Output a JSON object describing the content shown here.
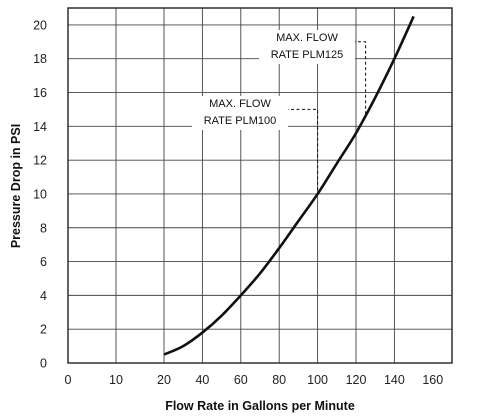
{
  "chart_data": {
    "type": "line",
    "title": "",
    "xlabel": "Flow Rate in Gallons per Minute",
    "ylabel": "Pressure Drop in PSI",
    "xlim": [
      0,
      160
    ],
    "ylim": [
      0,
      21
    ],
    "x_ticks": [
      0,
      10,
      20,
      40,
      60,
      80,
      100,
      120,
      140,
      160
    ],
    "x_tick_labels": [
      "0",
      "10",
      "20",
      "40",
      "60",
      "80",
      "100",
      "120",
      "140",
      "160"
    ],
    "y_ticks": [
      0,
      2,
      4,
      6,
      8,
      10,
      12,
      14,
      16,
      18,
      20
    ],
    "y_tick_labels": [
      "0",
      "2",
      "4",
      "6",
      "8",
      "10",
      "12",
      "14",
      "16",
      "18",
      "20"
    ],
    "grid": true,
    "series": [
      {
        "x": [
          20,
          30,
          40,
          50,
          60,
          70,
          80,
          90,
          100,
          110,
          120,
          130,
          140,
          150
        ],
        "y": [
          0.5,
          1.0,
          1.8,
          2.8,
          4.0,
          5.3,
          6.8,
          8.4,
          10.0,
          11.8,
          13.6,
          15.7,
          18.0,
          20.5
        ]
      }
    ],
    "annotations": [
      {
        "line1": "MAX. FLOW",
        "line2": "RATE PLM100",
        "x": 100
      },
      {
        "line1": "MAX. FLOW",
        "line2": "RATE PLM125",
        "x": 125
      }
    ]
  }
}
